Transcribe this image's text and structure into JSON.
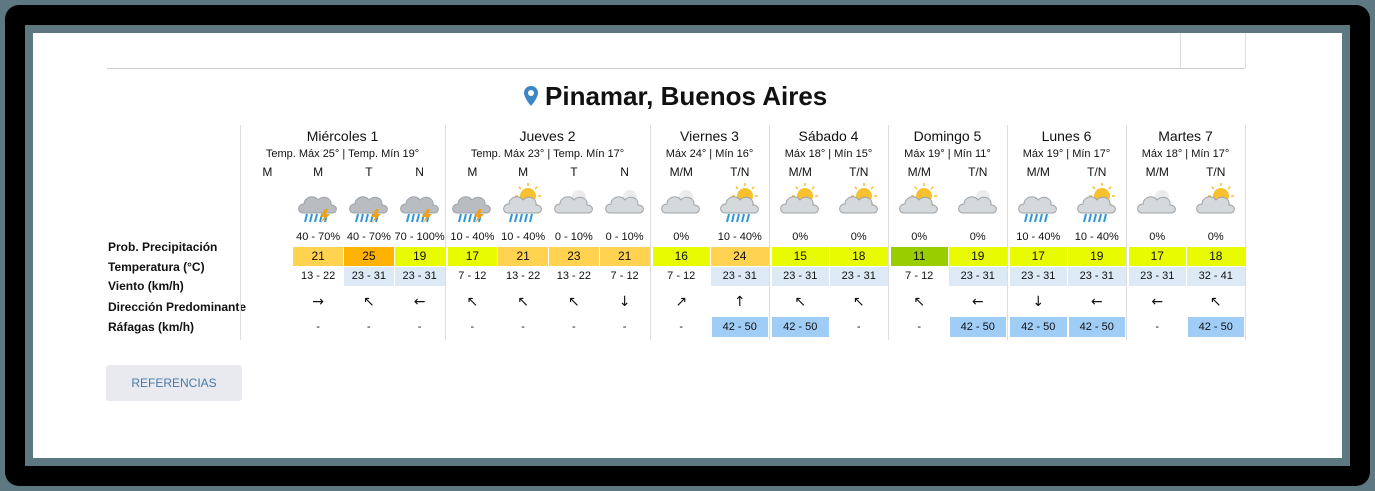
{
  "header": {
    "title": "Pinamar, Buenos Aires"
  },
  "row_labels": [
    "Prob. Precipitación",
    "Temperatura (°C)",
    "Viento (km/h)",
    "Dirección Predominante",
    "Ráfagas (km/h)"
  ],
  "days": [
    {
      "name": "Miércoles 1",
      "summary": "Temp. Máx 25° | Temp. Mín 19°",
      "periods": [
        {
          "label": "M"
        },
        {
          "label": "M",
          "icon": "storm",
          "prob": "40 - 70%",
          "temp": 21,
          "temp_color": "#ffd24f",
          "wind": "13 - 22",
          "dir": "→",
          "gust": "-"
        },
        {
          "label": "T",
          "icon": "storm",
          "prob": "40 - 70%",
          "temp": 25,
          "temp_color": "#ffb300",
          "wind": "23 - 31",
          "wind_color": "#dde9f4",
          "dir": "↖",
          "gust": "-"
        },
        {
          "label": "N",
          "icon": "storm",
          "prob": "70 - 100%",
          "temp": 19,
          "temp_color": "#e8fb00",
          "wind": "23 - 31",
          "wind_color": "#dde9f4",
          "dir": "←",
          "gust": "-"
        }
      ]
    },
    {
      "name": "Jueves 2",
      "summary": "Temp. Máx 23° | Temp. Mín 17°",
      "periods": [
        {
          "label": "M",
          "icon": "storm",
          "prob": "10 - 40%",
          "temp": 17,
          "temp_color": "#e8fb00",
          "wind": "7 - 12",
          "dir": "↖",
          "gust": "-"
        },
        {
          "label": "M",
          "icon": "rain-sun",
          "prob": "10 - 40%",
          "temp": 21,
          "temp_color": "#ffd24f",
          "wind": "13 - 22",
          "dir": "↖",
          "gust": "-"
        },
        {
          "label": "T",
          "icon": "cloud",
          "prob": "0 - 10%",
          "temp": 23,
          "temp_color": "#ffd24f",
          "wind": "13 - 22",
          "dir": "↖",
          "gust": "-"
        },
        {
          "label": "N",
          "icon": "cloud",
          "prob": "0 - 10%",
          "temp": 21,
          "temp_color": "#ffd24f",
          "wind": "7 - 12",
          "dir": "↓",
          "gust": "-"
        }
      ]
    },
    {
      "name": "Viernes 3",
      "summary": "Máx 24° | Mín 16°",
      "periods": [
        {
          "label": "M/M",
          "icon": "cloud",
          "prob": "0%",
          "temp": 16,
          "temp_color": "#e8fb00",
          "wind": "7 - 12",
          "dir": "↗",
          "gust": "-"
        },
        {
          "label": "T/N",
          "icon": "rain-sun",
          "prob": "10 - 40%",
          "temp": 24,
          "temp_color": "#ffd24f",
          "wind": "23 - 31",
          "wind_color": "#dde9f4",
          "dir": "↑",
          "gust": "42 - 50",
          "gust_color": "#9fcdf6"
        }
      ]
    },
    {
      "name": "Sábado 4",
      "summary": "Máx 18° | Mín 15°",
      "periods": [
        {
          "label": "M/M",
          "icon": "sun-cloud",
          "prob": "0%",
          "temp": 15,
          "temp_color": "#e8fb00",
          "wind": "23 - 31",
          "wind_color": "#dde9f4",
          "dir": "↖",
          "gust": "42 - 50",
          "gust_color": "#9fcdf6"
        },
        {
          "label": "T/N",
          "icon": "sun-cloud",
          "prob": "0%",
          "temp": 18,
          "temp_color": "#e8fb00",
          "wind": "23 - 31",
          "wind_color": "#dde9f4",
          "dir": "↖",
          "gust": "-"
        }
      ]
    },
    {
      "name": "Domingo 5",
      "summary": "Máx 19° | Mín 11°",
      "periods": [
        {
          "label": "M/M",
          "icon": "sun-cloud",
          "prob": "0%",
          "temp": 11,
          "temp_color": "#9acd00",
          "wind": "7 - 12",
          "dir": "↖",
          "gust": "-"
        },
        {
          "label": "T/N",
          "icon": "cloud",
          "prob": "0%",
          "temp": 19,
          "temp_color": "#e8fb00",
          "wind": "23 - 31",
          "wind_color": "#dde9f4",
          "dir": "←",
          "gust": "42 - 50",
          "gust_color": "#9fcdf6"
        }
      ]
    },
    {
      "name": "Lunes 6",
      "summary": "Máx 19° | Mín 17°",
      "periods": [
        {
          "label": "M/M",
          "icon": "rain",
          "prob": "10 - 40%",
          "temp": 17,
          "temp_color": "#e8fb00",
          "wind": "23 - 31",
          "wind_color": "#dde9f4",
          "dir": "↓",
          "gust": "42 - 50",
          "gust_color": "#9fcdf6"
        },
        {
          "label": "T/N",
          "icon": "rain-sun",
          "prob": "10 - 40%",
          "temp": 19,
          "temp_color": "#e8fb00",
          "wind": "23 - 31",
          "wind_color": "#dde9f4",
          "dir": "←",
          "gust": "42 - 50",
          "gust_color": "#9fcdf6"
        }
      ]
    },
    {
      "name": "Martes 7",
      "summary": "Máx 18° | Mín 17°",
      "periods": [
        {
          "label": "M/M",
          "icon": "cloud",
          "prob": "0%",
          "temp": 17,
          "temp_color": "#e8fb00",
          "wind": "23 - 31",
          "wind_color": "#dde9f4",
          "dir": "←",
          "gust": "-"
        },
        {
          "label": "T/N",
          "icon": "sun-cloud",
          "prob": "0%",
          "temp": 18,
          "temp_color": "#e8fb00",
          "wind": "32 - 41",
          "wind_color": "#dde9f4",
          "dir": "↖",
          "gust": "42 - 50",
          "gust_color": "#9fcdf6"
        }
      ]
    }
  ],
  "button": "REFERENCIAS"
}
